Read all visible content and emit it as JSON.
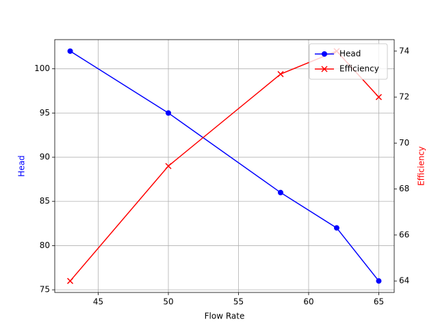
{
  "chart_data": {
    "type": "line",
    "x": [
      43,
      50,
      58,
      62,
      65
    ],
    "xlabel": "Flow Rate",
    "ylabel": "Head",
    "y2label": "Efficiency",
    "xlim": [
      41.9,
      66.1
    ],
    "xticks": [
      45,
      50,
      55,
      60,
      65
    ],
    "ylim": [
      74.7,
      103.3
    ],
    "yticks": [
      75,
      80,
      85,
      90,
      95,
      100
    ],
    "y2lim": [
      63.5,
      74.5
    ],
    "y2ticks": [
      64,
      66,
      68,
      70,
      72,
      74
    ],
    "grid": true,
    "legend": "upper right",
    "series": [
      {
        "name": "Head",
        "color": "#0000ff",
        "marker": "o",
        "values": [
          102,
          95,
          86,
          82,
          76
        ]
      },
      {
        "name": "Efficiency",
        "color": "#ff0000",
        "marker": "x",
        "axis": "y2",
        "values": [
          64,
          69,
          73,
          74,
          72
        ]
      }
    ]
  }
}
